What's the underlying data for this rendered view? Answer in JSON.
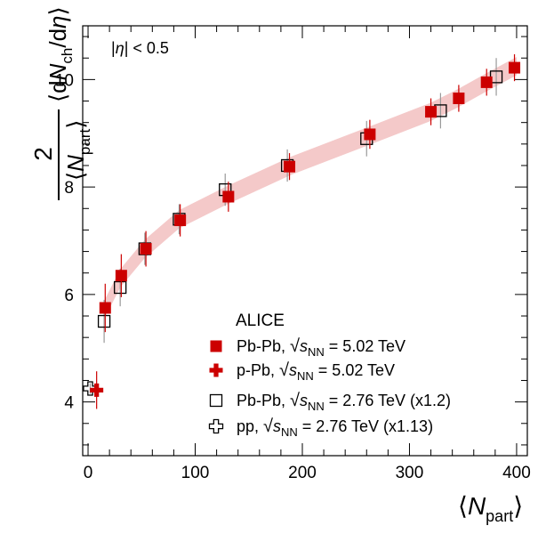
{
  "chart_data": {
    "type": "scatter",
    "xlim": [
      -5,
      410
    ],
    "ylim": [
      3.0,
      11.0
    ],
    "x_ticks": [
      0,
      100,
      200,
      300,
      400
    ],
    "y_ticks": [
      4,
      6,
      8,
      10
    ],
    "x_tick_labels": [
      "0",
      "100",
      "200",
      "300",
      "400"
    ],
    "y_tick_labels": [
      "4",
      "6",
      "8",
      "10"
    ],
    "xlabel": "⟨N_part⟩",
    "ylabel": "2/⟨N_part⟩ ⟨dN_ch/dη⟩",
    "annotation": "|η| < 0.5",
    "legend_title": "ALICE",
    "legend_position": "bottom-right",
    "band": {
      "color": "#f4c9c9",
      "x": [
        16,
        30,
        53,
        85,
        130,
        190,
        262,
        320,
        345,
        372,
        400
      ],
      "y": [
        5.75,
        6.3,
        6.85,
        7.4,
        7.85,
        8.4,
        8.95,
        9.4,
        9.65,
        9.95,
        10.25
      ]
    },
    "series": [
      {
        "name": "Pb-Pb, √s_NN = 5.02 TeV",
        "marker": "filled-square",
        "color": "#cc0000",
        "x": [
          16,
          31,
          54,
          86,
          131,
          188,
          263,
          320,
          346,
          372,
          398
        ],
        "y": [
          5.75,
          6.35,
          6.85,
          7.38,
          7.82,
          8.38,
          8.98,
          9.4,
          9.65,
          9.95,
          10.22
        ],
        "err": [
          0.45,
          0.4,
          0.33,
          0.3,
          0.28,
          0.25,
          0.27,
          0.25,
          0.25,
          0.25,
          0.25
        ]
      },
      {
        "name": "p-Pb, √s_NN = 5.02 TeV",
        "marker": "filled-cross",
        "color": "#cc0000",
        "x": [
          8
        ],
        "y": [
          4.22
        ],
        "err": [
          0.35
        ]
      },
      {
        "name": "Pb-Pb, √s_NN = 2.76 TeV (x1.2)",
        "marker": "open-square",
        "color": "#000000",
        "x": [
          15,
          30,
          53,
          85,
          128,
          186,
          260,
          329,
          381
        ],
        "y": [
          5.5,
          6.13,
          6.85,
          7.4,
          7.95,
          8.4,
          8.9,
          9.42,
          10.05
        ],
        "err": [
          0.4,
          0.35,
          0.3,
          0.28,
          0.3,
          0.3,
          0.33,
          0.33,
          0.35
        ]
      },
      {
        "name": "pp, √s_NN = 2.76 TeV (x1.13)",
        "marker": "open-cross",
        "color": "#000000",
        "x": [
          2
        ],
        "y": [
          4.25
        ],
        "err": [
          0.1
        ]
      }
    ],
    "legend_entries": [
      {
        "pre": "Pb-Pb, ",
        "post": " = 5.02 TeV"
      },
      {
        "pre": "p-Pb, ",
        "post": " = 5.02 TeV"
      },
      {
        "pre": "Pb-Pb, ",
        "post": " = 2.76 TeV (x1.2)"
      },
      {
        "pre": "pp, ",
        "post": " = 2.76 TeV (x1.13)"
      }
    ]
  }
}
